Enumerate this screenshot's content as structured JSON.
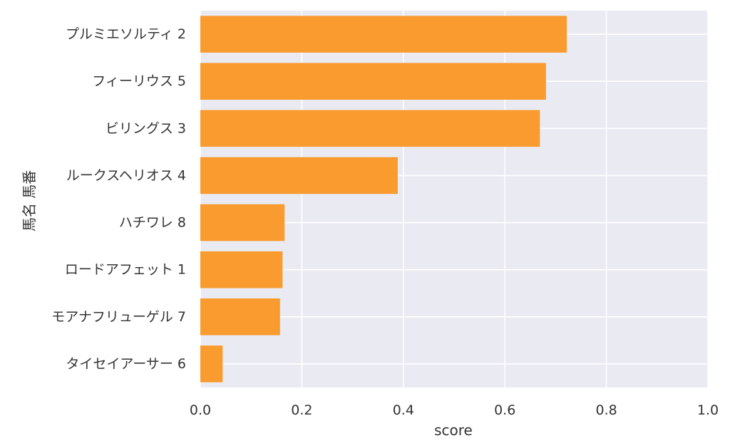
{
  "chart_data": {
    "type": "bar",
    "orientation": "horizontal",
    "xlabel": "score",
    "ylabel": "馬名 馬番",
    "xlim": [
      0.0,
      1.0
    ],
    "xticks": [
      "0.0",
      "0.2",
      "0.4",
      "0.6",
      "0.8",
      "1.0"
    ],
    "grid": true,
    "bar_color": "#f99b2e",
    "background_color": "#eaeaf2",
    "grid_color": "#ffffff",
    "categories": [
      "プルミエソルティ 2",
      "フィーリウス 5",
      "ビリングス 3",
      "ルークスヘリオス 4",
      "ハチワレ 8",
      "ロードアフェット 1",
      "モアナフリューゲル 7",
      "タイセイアーサー 6"
    ],
    "values": [
      0.722,
      0.681,
      0.669,
      0.389,
      0.166,
      0.162,
      0.157,
      0.044
    ]
  }
}
